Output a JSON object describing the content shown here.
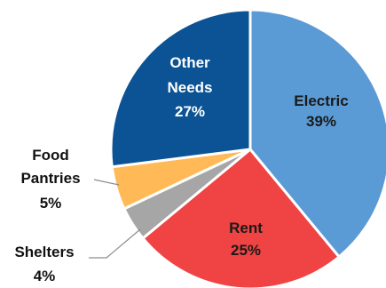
{
  "chart_data": {
    "type": "pie",
    "title": "",
    "start_angle_deg": 0,
    "direction": "clockwise",
    "slices": [
      {
        "name": "Electric",
        "value": 39,
        "label_line1": "Electric",
        "label_pct": "39%",
        "color": "#5B9BD5",
        "label_position": "inside",
        "label_color": "#1a1a1a"
      },
      {
        "name": "Rent",
        "value": 25,
        "label_line1": "Rent",
        "label_pct": "25%",
        "color": "#F04343",
        "label_position": "inside",
        "label_color": "#1a1a1a"
      },
      {
        "name": "Shelters",
        "value": 4,
        "label_line1": "Shelters",
        "label_pct": "4%",
        "color": "#A6A6A6",
        "label_position": "outside"
      },
      {
        "name": "Food Pantries",
        "value": 5,
        "label_line1": "Food",
        "label_line2": "Pantries",
        "label_pct": "5%",
        "color": "#FFBA57",
        "label_position": "outside"
      },
      {
        "name": "Other Needs",
        "value": 27,
        "label_line1": "Other",
        "label_line2": "Needs",
        "label_pct": "27%",
        "color": "#0B5394",
        "label_position": "inside",
        "label_color": "#ffffff"
      }
    ]
  }
}
